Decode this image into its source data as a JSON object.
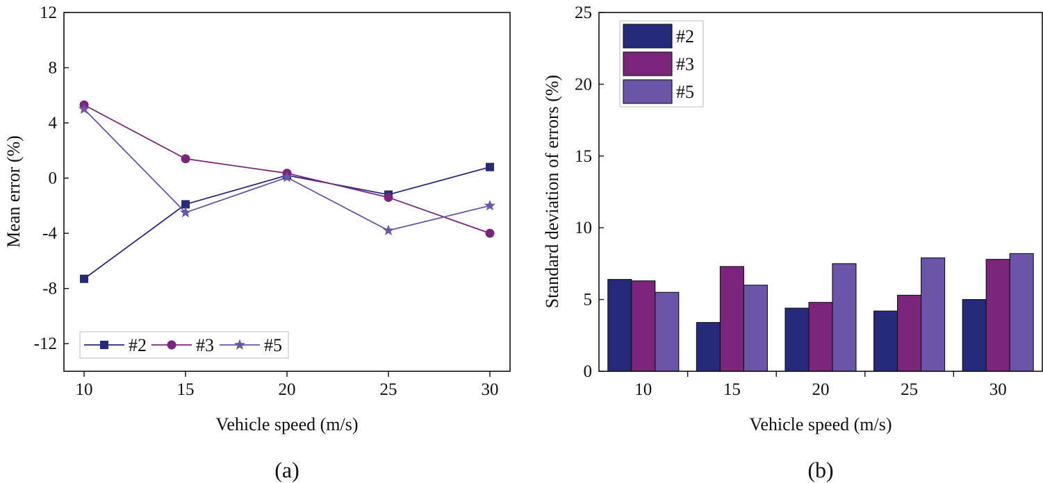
{
  "chart_data": [
    {
      "type": "line",
      "panel_label": "(a)",
      "xlabel": "Vehicle speed (m/s)",
      "ylabel": "Mean error (%)",
      "x": [
        10,
        15,
        20,
        25,
        30
      ],
      "xticks": [
        "10",
        "15",
        "20",
        "25",
        "30"
      ],
      "ylim": [
        -14,
        12
      ],
      "yticks": [
        -12,
        -8,
        -4,
        0,
        4,
        8,
        12
      ],
      "ytick_labels": [
        "-12",
        "-8",
        "-4",
        "0",
        "4",
        "8",
        "12"
      ],
      "legend_position": "bottom-left",
      "series": [
        {
          "name": "#2",
          "marker": "square",
          "color": "#262a7a",
          "values": [
            -7.3,
            -1.9,
            0.2,
            -1.2,
            0.8
          ]
        },
        {
          "name": "#3",
          "marker": "circle",
          "color": "#7b267c",
          "values": [
            5.3,
            1.4,
            0.35,
            -1.4,
            -4.0
          ]
        },
        {
          "name": "#5",
          "marker": "star",
          "color": "#6a55a8",
          "values": [
            5.0,
            -2.5,
            0.05,
            -3.8,
            -2.0
          ]
        }
      ]
    },
    {
      "type": "bar",
      "panel_label": "(b)",
      "xlabel": "Vehicle speed (m/s)",
      "ylabel": "Standard deviation of errors (%)",
      "categories": [
        "10",
        "15",
        "20",
        "25",
        "30"
      ],
      "ylim": [
        0,
        25
      ],
      "yticks": [
        0,
        5,
        10,
        15,
        20,
        25
      ],
      "ytick_labels": [
        "0",
        "5",
        "10",
        "15",
        "20",
        "25"
      ],
      "legend_position": "top-left",
      "series": [
        {
          "name": "#2",
          "color": "#262a7a",
          "values": [
            6.4,
            3.4,
            4.4,
            4.2,
            5.0
          ]
        },
        {
          "name": "#3",
          "color": "#7b267c",
          "values": [
            6.3,
            7.3,
            4.8,
            5.3,
            7.8
          ]
        },
        {
          "name": "#5",
          "color": "#6a55a8",
          "values": [
            5.5,
            6.0,
            7.5,
            7.9,
            8.2
          ]
        }
      ]
    }
  ]
}
